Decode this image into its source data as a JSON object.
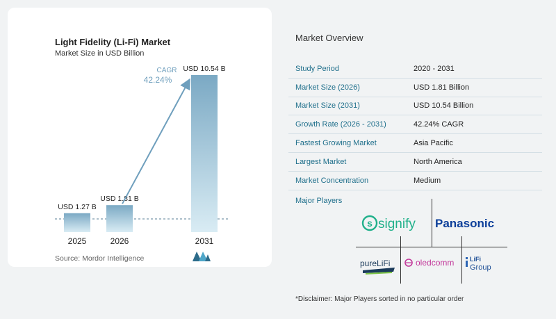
{
  "chart_data": {
    "type": "bar",
    "title": "Light Fidelity (Li-Fi) Market",
    "subtitle": "Market Size in USD Billion",
    "categories": [
      "2025",
      "2026",
      "2031"
    ],
    "values": [
      1.27,
      1.81,
      10.54
    ],
    "data_labels": [
      "USD 1.27 B",
      "USD 1.81 B",
      "USD 10.54 B"
    ],
    "cagr_label": "CAGR",
    "cagr_value": "42.24%",
    "ylim": [
      0,
      11
    ],
    "colors": {
      "bar_top": "#7ba9c4",
      "bar_bottom": "#d9ecf4",
      "arrow": "#6f9fbd",
      "cagr": "#6f9fbd"
    }
  },
  "source": "Source:  Mordor Intelligence",
  "overview": {
    "title": "Market Overview",
    "rows": [
      {
        "label": "Study Period",
        "value": "2020 - 2031"
      },
      {
        "label": "Market Size (2026)",
        "value": "USD 1.81 Billion"
      },
      {
        "label": "Market Size (2031)",
        "value": "USD 10.54 Billion"
      },
      {
        "label": "Growth Rate (2026 - 2031)",
        "value": "42.24% CAGR"
      },
      {
        "label": "Fastest Growing Market",
        "value": "Asia Pacific"
      },
      {
        "label": "Largest Market",
        "value": "North America"
      },
      {
        "label": "Market Concentration",
        "value": "Medium"
      }
    ]
  },
  "players": {
    "title": "Major Players",
    "logos": [
      "signify",
      "Panasonic",
      "pureLiFi",
      "oledcomm",
      "LiFi",
      "Group"
    ]
  },
  "disclaimer": "*Disclaimer: Major Players sorted in no particular order"
}
